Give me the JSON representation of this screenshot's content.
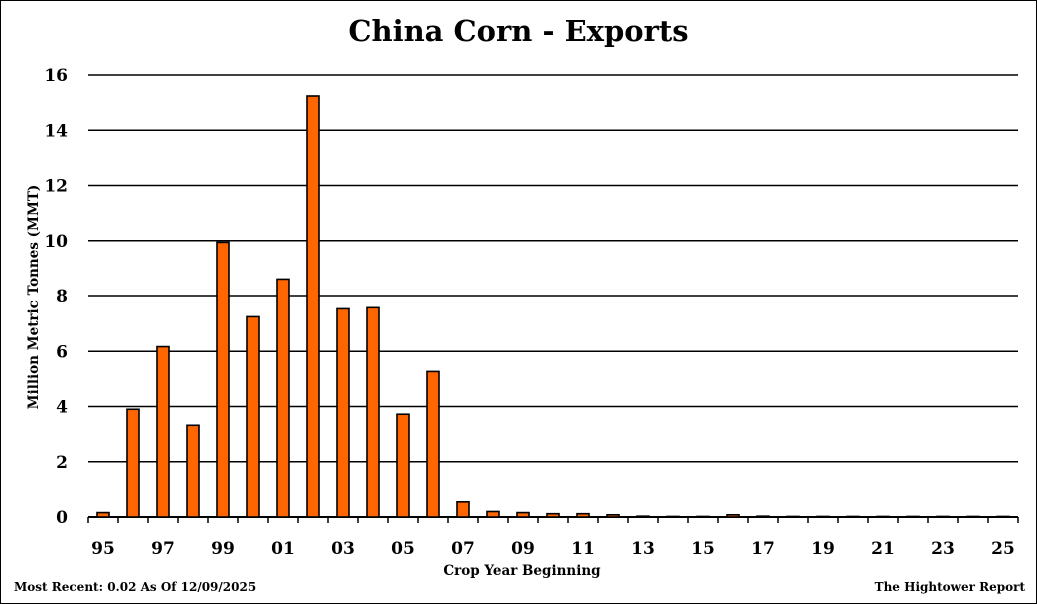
{
  "chart_data": {
    "type": "bar",
    "title": "China Corn - Exports",
    "xlabel": "Crop Year Beginning",
    "ylabel": "Million Metric Tonnes (MMT)",
    "ylim": [
      0,
      16
    ],
    "yticks": [
      "0",
      "2",
      "4",
      "6",
      "8",
      "10",
      "12",
      "14",
      "16"
    ],
    "grid": true,
    "categories": [
      "95",
      "96",
      "97",
      "98",
      "99",
      "00",
      "01",
      "02",
      "03",
      "04",
      "05",
      "06",
      "07",
      "08",
      "09",
      "10",
      "11",
      "12",
      "13",
      "14",
      "15",
      "16",
      "17",
      "18",
      "19",
      "20",
      "21",
      "22",
      "23",
      "24",
      "25"
    ],
    "xtick_labels": [
      "95",
      "97",
      "99",
      "01",
      "03",
      "05",
      "07",
      "09",
      "11",
      "13",
      "15",
      "17",
      "19",
      "21",
      "23",
      "25"
    ],
    "values": [
      0.16,
      3.9,
      6.17,
      3.32,
      9.94,
      7.26,
      8.6,
      15.24,
      7.55,
      7.59,
      3.72,
      5.27,
      0.55,
      0.2,
      0.16,
      0.12,
      0.12,
      0.08,
      0.03,
      0.02,
      0.02,
      0.08,
      0.03,
      0.02,
      0.02,
      0.02,
      0.02,
      0.02,
      0.02,
      0.02,
      0.02
    ],
    "bar_color": "#FF6600",
    "bar_edge_color": "#000000"
  },
  "footer": {
    "most_recent": "Most Recent: 0.02 As Of 12/09/2025",
    "source": "The Hightower Report"
  }
}
